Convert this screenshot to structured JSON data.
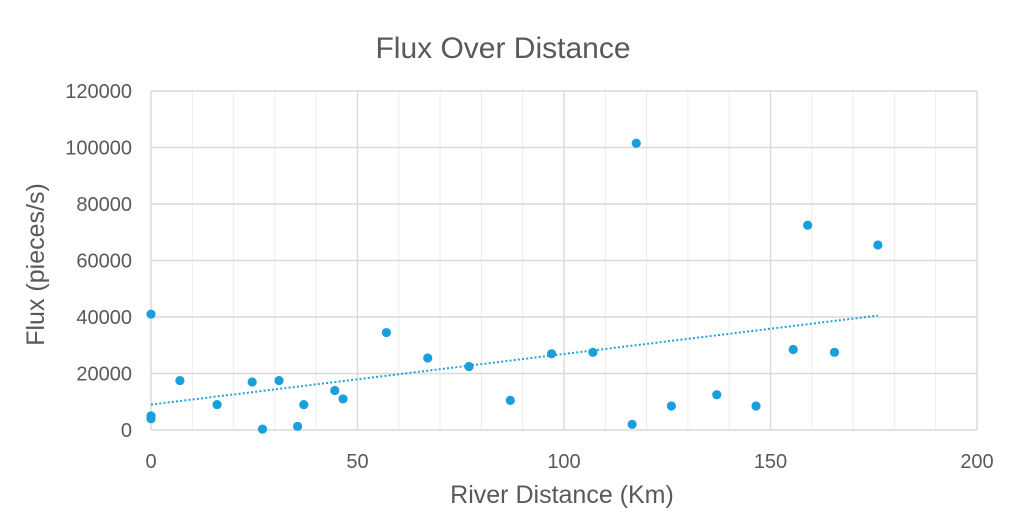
{
  "chart_data": {
    "type": "scatter",
    "title": "Flux Over Distance",
    "xlabel": "River Distance (Km)",
    "ylabel": "Flux (pieces/s)",
    "xlim": [
      0,
      200
    ],
    "ylim": [
      0,
      120000
    ],
    "x_major_ticks": [
      0,
      50,
      100,
      150,
      200
    ],
    "x_minor_step": 10,
    "y_ticks": [
      0,
      20000,
      40000,
      60000,
      80000,
      100000,
      120000
    ],
    "grid": true,
    "legend": "none",
    "point_color": "#1a9fdd",
    "trendline": {
      "type": "linear",
      "style": "dotted",
      "color": "#1ea1dd",
      "x_start": 0,
      "y_start": 9000,
      "x_end": 176,
      "y_end": 40500
    },
    "points": [
      {
        "x": 0,
        "y": 41000
      },
      {
        "x": 0,
        "y": 5000
      },
      {
        "x": 0,
        "y": 4000
      },
      {
        "x": 7,
        "y": 17500
      },
      {
        "x": 16,
        "y": 9000
      },
      {
        "x": 24.5,
        "y": 17000
      },
      {
        "x": 27,
        "y": 300
      },
      {
        "x": 31,
        "y": 17500
      },
      {
        "x": 35.5,
        "y": 1300
      },
      {
        "x": 37,
        "y": 9000
      },
      {
        "x": 44.5,
        "y": 14000
      },
      {
        "x": 46.5,
        "y": 11000
      },
      {
        "x": 57,
        "y": 34500
      },
      {
        "x": 67,
        "y": 25500
      },
      {
        "x": 77,
        "y": 22500
      },
      {
        "x": 87,
        "y": 10500
      },
      {
        "x": 97,
        "y": 27000
      },
      {
        "x": 107,
        "y": 27500
      },
      {
        "x": 116.5,
        "y": 2000
      },
      {
        "x": 117.5,
        "y": 101500
      },
      {
        "x": 126,
        "y": 8500
      },
      {
        "x": 137,
        "y": 12500
      },
      {
        "x": 146.5,
        "y": 8500
      },
      {
        "x": 155.5,
        "y": 28500
      },
      {
        "x": 159,
        "y": 72500
      },
      {
        "x": 165.5,
        "y": 27500
      },
      {
        "x": 176,
        "y": 65500
      }
    ]
  }
}
